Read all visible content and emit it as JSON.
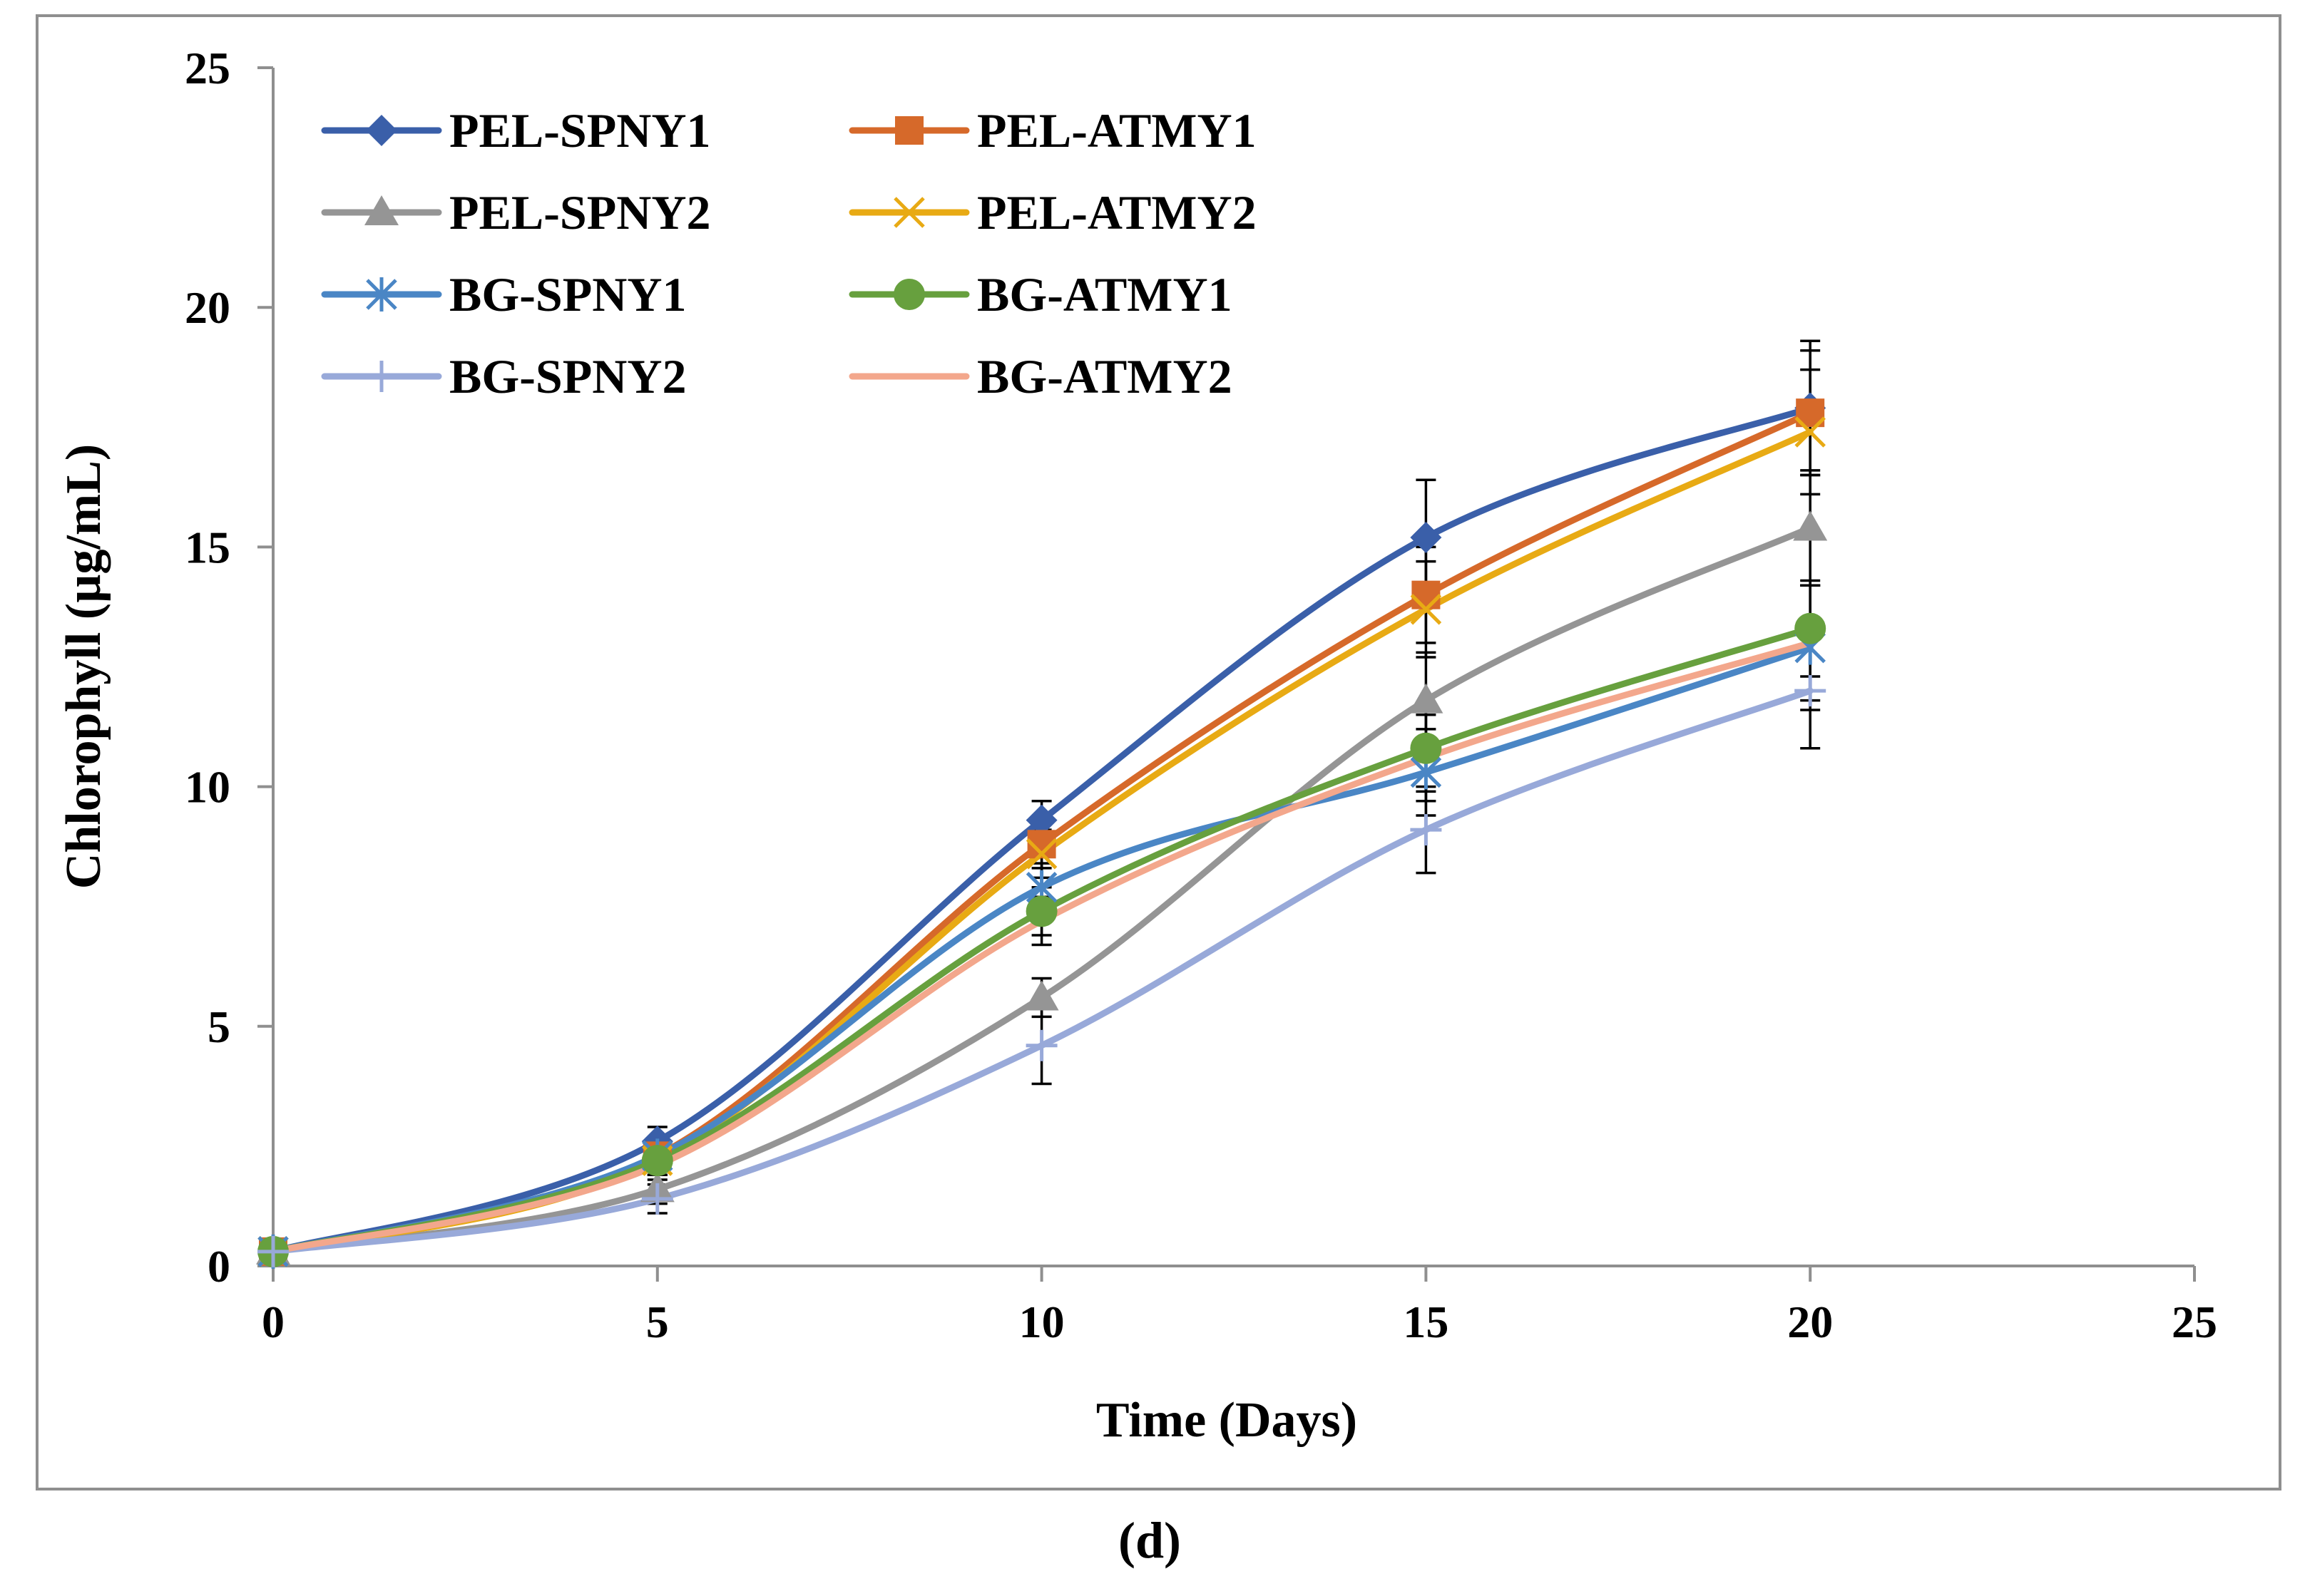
{
  "chart_data": {
    "type": "line",
    "title": "",
    "caption": "(d)",
    "xlabel": "Time (Days)",
    "ylabel": "Chlorophyll (µg/mL)",
    "xlim": [
      0,
      25
    ],
    "ylim": [
      0,
      25
    ],
    "xticks": [
      0,
      5,
      10,
      15,
      20,
      25
    ],
    "yticks": [
      0,
      5,
      10,
      15,
      20,
      25
    ],
    "xtick_labels": [
      "0",
      "5",
      "10",
      "15",
      "20",
      "25"
    ],
    "ytick_labels": [
      "0",
      "5",
      "10",
      "15",
      "20",
      "25"
    ],
    "grid": false,
    "legend_position": "top-left",
    "x": [
      0,
      5,
      10,
      15,
      20
    ],
    "series": [
      {
        "name": "PEL-SPNY1",
        "color": "#3A5FA9",
        "marker": "diamond",
        "values": [
          0.3,
          2.6,
          9.3,
          15.2,
          17.9
        ],
        "errors": [
          0.1,
          0.3,
          0.4,
          1.2,
          1.4
        ]
      },
      {
        "name": "PEL-ATMY1",
        "color": "#D6692A",
        "marker": "square",
        "values": [
          0.3,
          2.3,
          8.8,
          14.0,
          17.8
        ],
        "errors": [
          0.1,
          0.3,
          0.5,
          1.0,
          1.3
        ]
      },
      {
        "name": "PEL-SPNY2",
        "color": "#959595",
        "marker": "triangle",
        "values": [
          0.3,
          1.6,
          5.6,
          11.8,
          15.4
        ],
        "errors": [
          0.1,
          0.3,
          0.4,
          1.0,
          1.2
        ]
      },
      {
        "name": "PEL-ATMY2",
        "color": "#E8AA14",
        "marker": "x",
        "values": [
          0.3,
          2.2,
          8.6,
          13.7,
          17.4
        ],
        "errors": [
          0.1,
          0.3,
          0.5,
          1.0,
          1.3
        ]
      },
      {
        "name": "BG-SPNY1",
        "color": "#4A86C5",
        "marker": "asterisk",
        "values": [
          0.3,
          2.3,
          7.9,
          10.3,
          12.9
        ],
        "errors": [
          0.1,
          0.3,
          0.5,
          0.9,
          1.3
        ]
      },
      {
        "name": "BG-ATMY1",
        "color": "#67A03E",
        "marker": "circle",
        "values": [
          0.3,
          2.2,
          7.4,
          10.8,
          13.3
        ],
        "errors": [
          0.1,
          0.3,
          0.5,
          0.9,
          1.0
        ]
      },
      {
        "name": "BG-SPNY2",
        "color": "#98A9D9",
        "marker": "plus",
        "values": [
          0.3,
          1.4,
          4.6,
          9.1,
          12.0
        ],
        "errors": [
          0.1,
          0.3,
          0.8,
          0.9,
          1.2
        ]
      },
      {
        "name": "BG-ATMY2",
        "color": "#F3A78C",
        "marker": "none",
        "values": [
          0.3,
          2.1,
          7.2,
          10.6,
          13.0
        ],
        "errors": [
          0.1,
          0.3,
          0.5,
          0.9,
          1.2
        ]
      }
    ]
  }
}
